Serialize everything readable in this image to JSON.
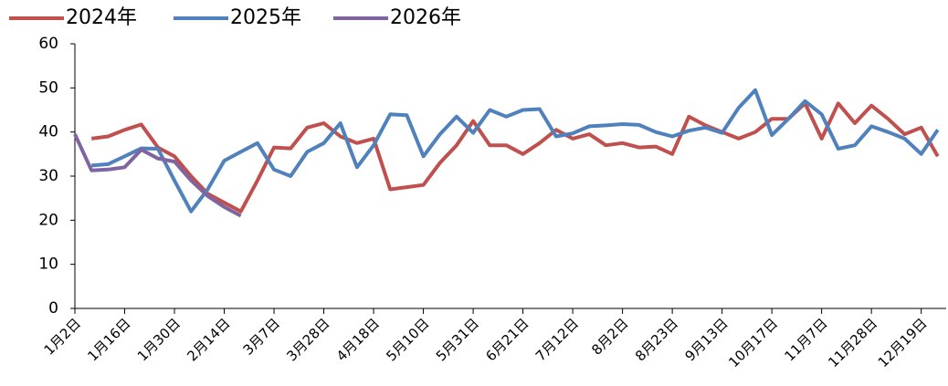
{
  "chart_data": {
    "type": "line",
    "categories": [
      "1月2日",
      null,
      null,
      "1月16日",
      null,
      null,
      "1月30日",
      null,
      null,
      "2月14日",
      null,
      null,
      "3月7日",
      null,
      null,
      "3月28日",
      null,
      null,
      "4月18日",
      null,
      null,
      "5月10日",
      null,
      null,
      "5月31日",
      null,
      null,
      "6月21日",
      null,
      null,
      "7月12日",
      null,
      null,
      "8月2日",
      null,
      null,
      "8月23日",
      null,
      null,
      "9月13日",
      null,
      null,
      "10月17日",
      null,
      null,
      "11月7日",
      null,
      null,
      "11月28日",
      null,
      null,
      "12月19日",
      null
    ],
    "series": [
      {
        "name": "2024年",
        "color": "#c0504d",
        "values": [
          null,
          38.5,
          39,
          40.5,
          41.7,
          36.5,
          34.5,
          30,
          26,
          24,
          22,
          29,
          36.5,
          36.3,
          41,
          42,
          39,
          37.5,
          38.5,
          27,
          27.5,
          28,
          33,
          37,
          42.5,
          37,
          37,
          35,
          37.5,
          40.5,
          38.5,
          39.5,
          37,
          37.5,
          36.5,
          36.7,
          35,
          43.5,
          41.5,
          40,
          38.5,
          40,
          43,
          43,
          46.5,
          38.5,
          46.5,
          42,
          46,
          43,
          39.5,
          41,
          34.5
        ]
      },
      {
        "name": "2025年",
        "color": "#4f81bd",
        "values": [
          null,
          32.4,
          32.7,
          34.5,
          36.3,
          36.2,
          29,
          22,
          27,
          33.5,
          35.5,
          37.5,
          31.5,
          30,
          35.5,
          37.5,
          42,
          32,
          37,
          44,
          43.8,
          34.5,
          39.5,
          43.5,
          39.8,
          45,
          43.5,
          45,
          45.2,
          39,
          39.7,
          41.3,
          41.5,
          41.8,
          41.6,
          40,
          39,
          40.3,
          41,
          39.8,
          45.5,
          49.5,
          39.3,
          43,
          47,
          44,
          36.2,
          37,
          41.3,
          40,
          38.5,
          35,
          40.5
        ]
      },
      {
        "name": "2026年",
        "color": "#8064a2",
        "values": [
          39.5,
          31.3,
          31.5,
          32,
          36,
          34,
          33.3,
          29,
          25.5,
          23,
          21,
          null,
          null,
          null,
          null,
          null,
          null,
          null,
          null,
          null,
          null,
          null,
          null,
          null,
          null,
          null,
          null,
          null,
          null,
          null,
          null,
          null,
          null,
          null,
          null,
          null,
          null,
          null,
          null,
          null,
          null,
          null,
          null,
          null,
          null,
          null,
          null,
          null,
          null,
          null,
          null,
          null,
          null
        ]
      }
    ],
    "ylim": [
      0,
      60
    ],
    "yticks": [
      0,
      10,
      20,
      30,
      40,
      50,
      60
    ]
  }
}
